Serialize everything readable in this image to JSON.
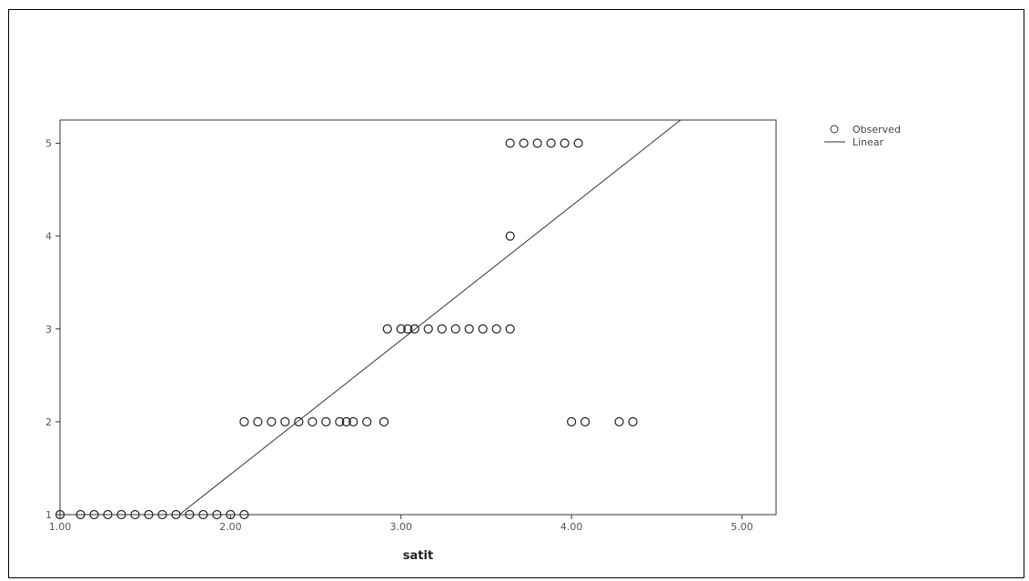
{
  "chart_data": {
    "type": "scatter",
    "title": "",
    "xlabel": "satit",
    "ylabel": "",
    "xlim": [
      1.0,
      5.2
    ],
    "ylim": [
      1,
      5.25
    ],
    "x_ticks": [
      1.0,
      2.0,
      3.0,
      4.0,
      5.0
    ],
    "x_tick_labels": [
      "1.00",
      "2.00",
      "3.00",
      "4.00",
      "5.00"
    ],
    "y_ticks": [
      1,
      2,
      3,
      4,
      5
    ],
    "y_tick_labels": [
      "1",
      "2",
      "3",
      "4",
      "5"
    ],
    "grid": false,
    "legend": {
      "placement": "right-top",
      "entries": [
        {
          "label": "Observed",
          "marker": "circle"
        },
        {
          "label": "Linear",
          "marker": "line"
        }
      ]
    },
    "series": [
      {
        "name": "Observed",
        "kind": "scatter",
        "points": [
          {
            "x": 1.0,
            "y": 1
          },
          {
            "x": 1.12,
            "y": 1
          },
          {
            "x": 1.2,
            "y": 1
          },
          {
            "x": 1.28,
            "y": 1
          },
          {
            "x": 1.36,
            "y": 1
          },
          {
            "x": 1.44,
            "y": 1
          },
          {
            "x": 1.52,
            "y": 1
          },
          {
            "x": 1.6,
            "y": 1
          },
          {
            "x": 1.68,
            "y": 1
          },
          {
            "x": 1.76,
            "y": 1
          },
          {
            "x": 1.84,
            "y": 1
          },
          {
            "x": 1.92,
            "y": 1
          },
          {
            "x": 2.0,
            "y": 1
          },
          {
            "x": 2.08,
            "y": 1
          },
          {
            "x": 2.08,
            "y": 2
          },
          {
            "x": 2.16,
            "y": 2
          },
          {
            "x": 2.24,
            "y": 2
          },
          {
            "x": 2.32,
            "y": 2
          },
          {
            "x": 2.4,
            "y": 2
          },
          {
            "x": 2.48,
            "y": 2
          },
          {
            "x": 2.56,
            "y": 2
          },
          {
            "x": 2.64,
            "y": 2
          },
          {
            "x": 2.68,
            "y": 2
          },
          {
            "x": 2.72,
            "y": 2
          },
          {
            "x": 2.8,
            "y": 2
          },
          {
            "x": 2.9,
            "y": 2
          },
          {
            "x": 4.0,
            "y": 2
          },
          {
            "x": 4.08,
            "y": 2
          },
          {
            "x": 4.28,
            "y": 2
          },
          {
            "x": 4.36,
            "y": 2
          },
          {
            "x": 2.92,
            "y": 3
          },
          {
            "x": 3.0,
            "y": 3
          },
          {
            "x": 3.04,
            "y": 3
          },
          {
            "x": 3.08,
            "y": 3
          },
          {
            "x": 3.16,
            "y": 3
          },
          {
            "x": 3.24,
            "y": 3
          },
          {
            "x": 3.32,
            "y": 3
          },
          {
            "x": 3.4,
            "y": 3
          },
          {
            "x": 3.48,
            "y": 3
          },
          {
            "x": 3.56,
            "y": 3
          },
          {
            "x": 3.64,
            "y": 3
          },
          {
            "x": 3.64,
            "y": 4
          },
          {
            "x": 3.64,
            "y": 5
          },
          {
            "x": 3.72,
            "y": 5
          },
          {
            "x": 3.8,
            "y": 5
          },
          {
            "x": 3.88,
            "y": 5
          },
          {
            "x": 3.96,
            "y": 5
          },
          {
            "x": 4.04,
            "y": 5
          }
        ]
      },
      {
        "name": "Linear",
        "kind": "line",
        "points": [
          {
            "x": 1.7,
            "y": 1.0
          },
          {
            "x": 4.64,
            "y": 5.25
          }
        ]
      }
    ]
  }
}
